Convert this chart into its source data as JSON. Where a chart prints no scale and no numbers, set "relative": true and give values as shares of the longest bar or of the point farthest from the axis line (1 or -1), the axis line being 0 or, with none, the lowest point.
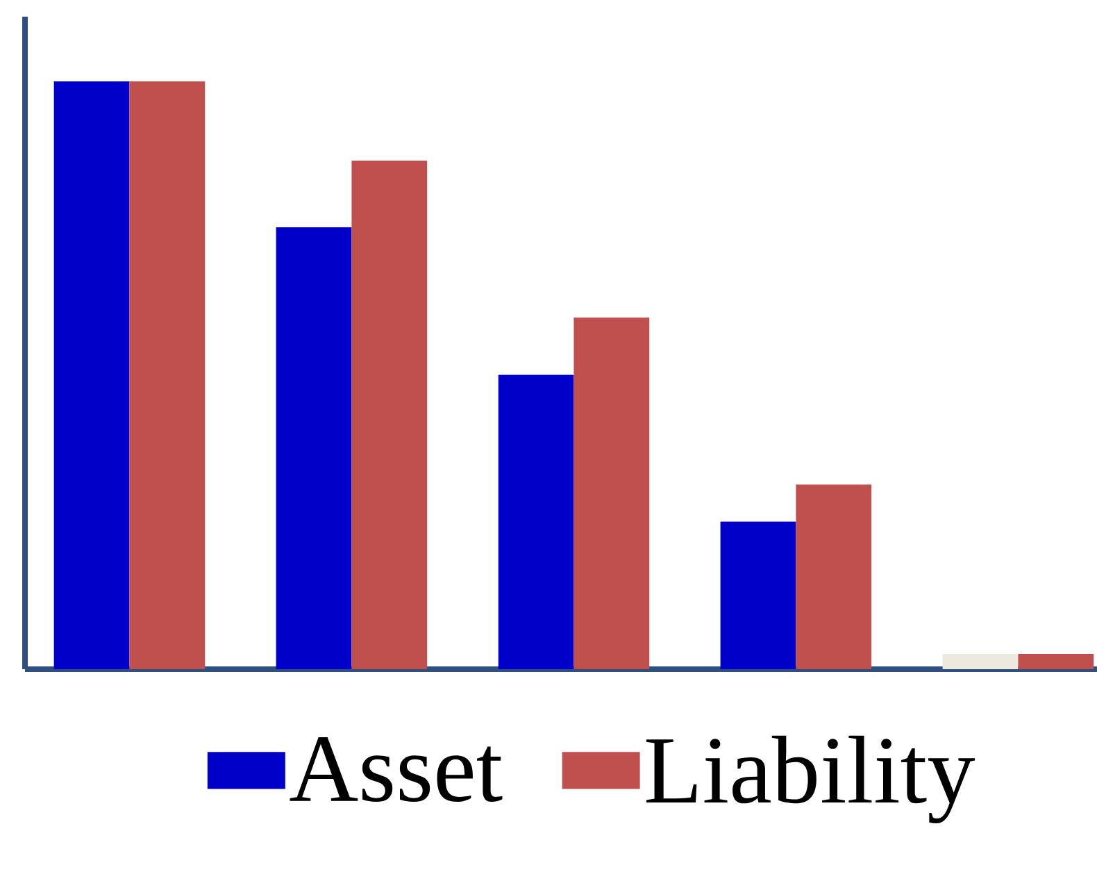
{
  "chart_data": {
    "type": "bar",
    "relative": true,
    "categories": [
      null,
      null,
      null,
      null,
      null
    ],
    "series": [
      {
        "name": "Asset",
        "color": "#0000c8",
        "colors": [
          "#0000c8",
          "#0000c8",
          "#0000c8",
          "#0000c8",
          "#ede9df"
        ],
        "values": [
          1,
          0.752,
          0.501,
          0.251,
          0.026
        ]
      },
      {
        "name": "Liability",
        "color": "#c0504d",
        "values": [
          1,
          0.865,
          0.598,
          0.314,
          0.026
        ]
      }
    ],
    "legend": "bottom"
  }
}
